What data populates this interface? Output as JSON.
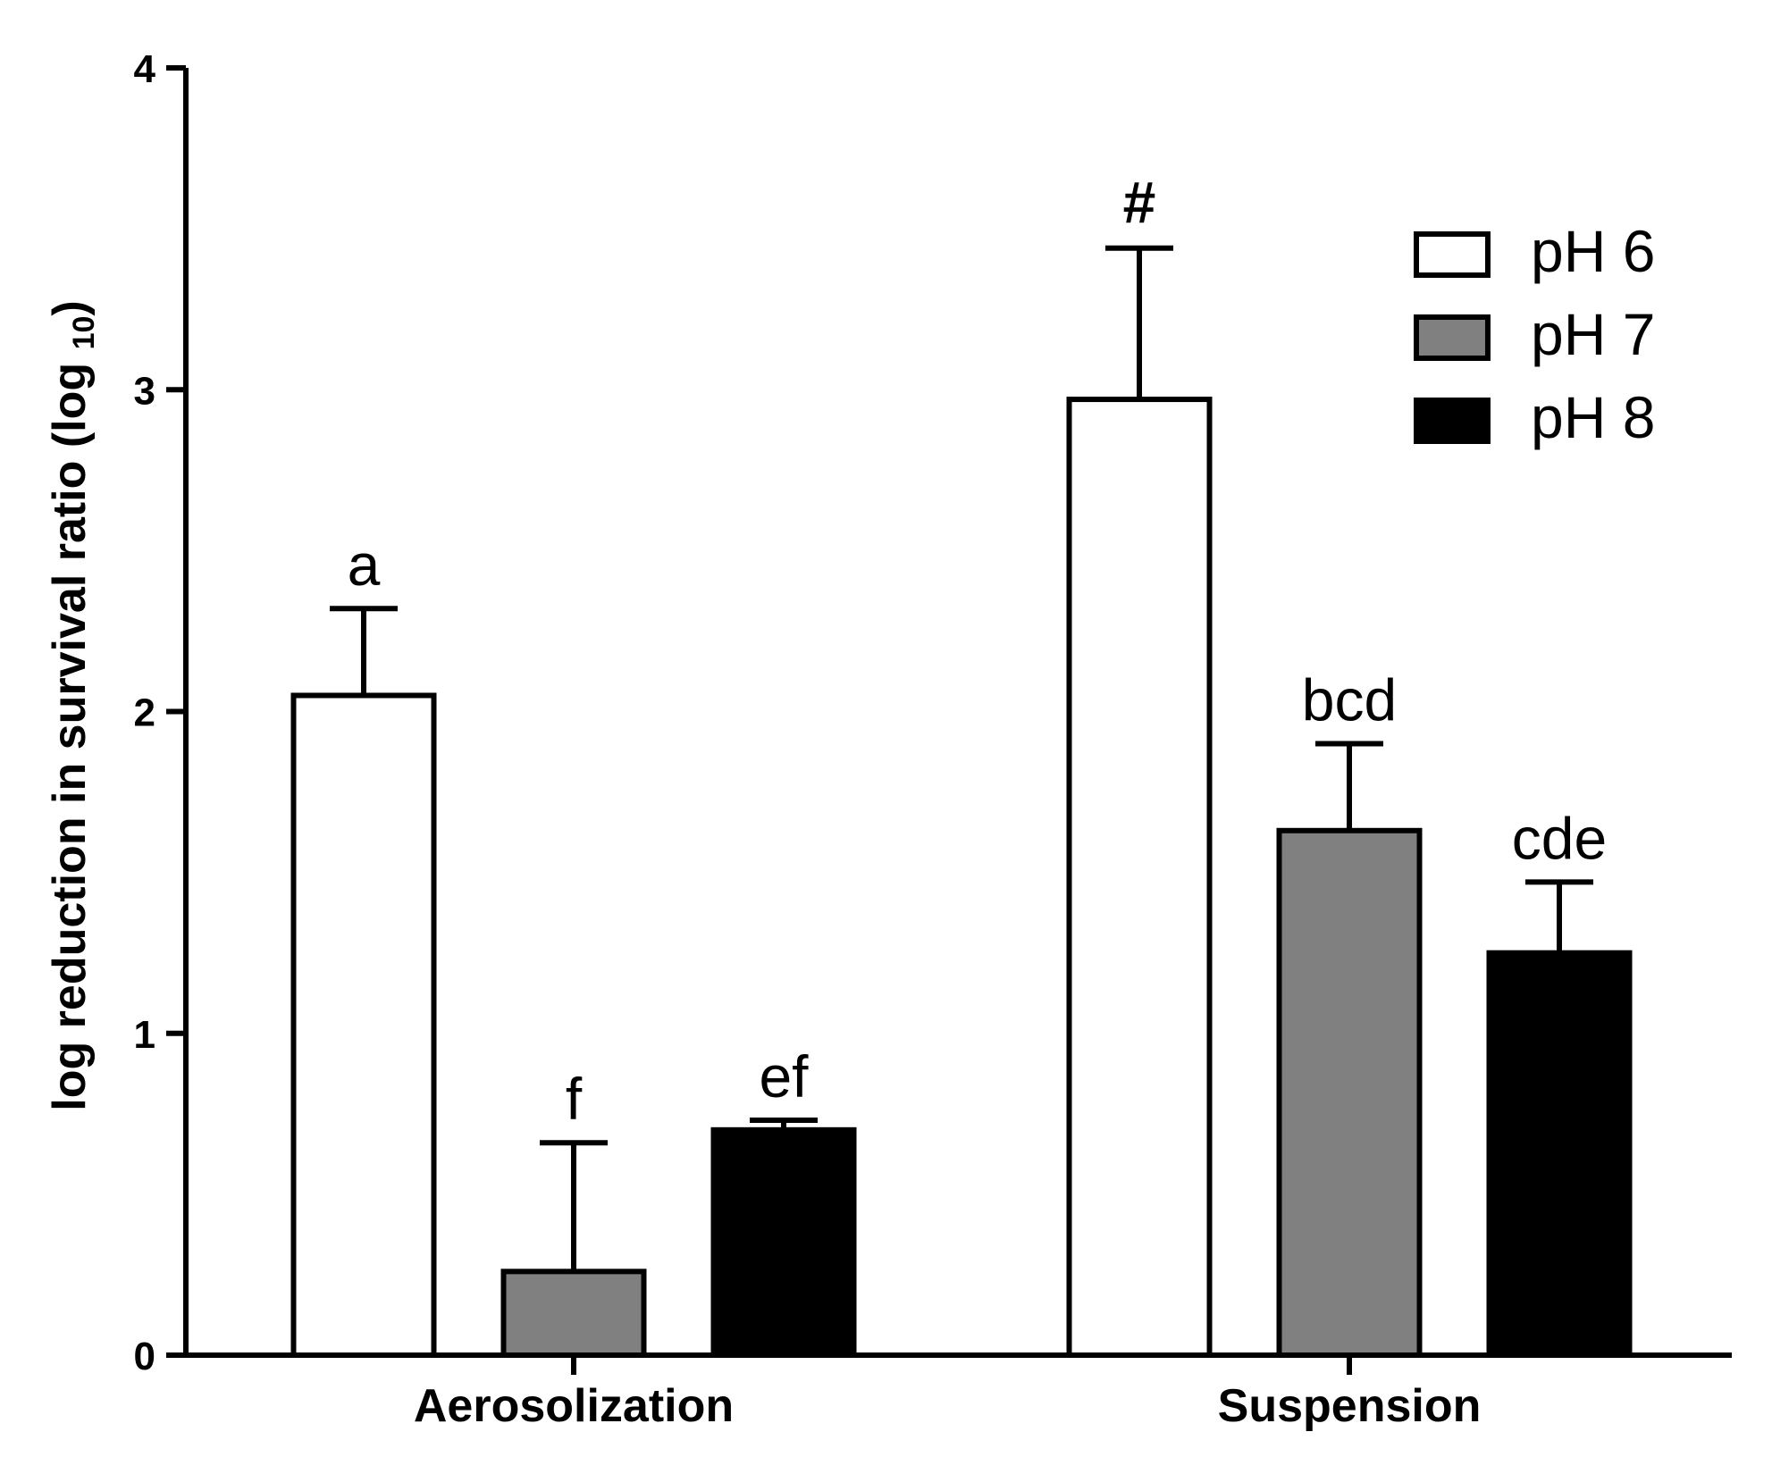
{
  "chart_data": {
    "type": "bar",
    "title": "",
    "xlabel": "",
    "ylabel": "log reduction in survival ratio (log ",
    "ylabel_sub": "10",
    "ylabel_close": ")",
    "ylim": [
      0,
      4
    ],
    "yticks": [
      "0",
      "1",
      "2",
      "3",
      "4"
    ],
    "grid": false,
    "legend_position": "top-right",
    "categories": [
      "Aerosolization",
      "Suspension"
    ],
    "series": [
      {
        "name": "pH 6",
        "color": "#ffffff",
        "values": [
          2.05,
          2.97
        ],
        "errors": [
          0.27,
          0.47
        ],
        "labels": [
          "a",
          "#"
        ]
      },
      {
        "name": "pH 7",
        "color": "#808080",
        "values": [
          0.26,
          1.63
        ],
        "errors": [
          0.4,
          0.27
        ],
        "labels": [
          "f",
          "bcd"
        ]
      },
      {
        "name": "pH 8",
        "color": "#000000",
        "values": [
          0.7,
          1.25
        ],
        "errors": [
          0.03,
          0.22
        ],
        "labels": [
          "ef",
          "cde"
        ]
      }
    ]
  }
}
